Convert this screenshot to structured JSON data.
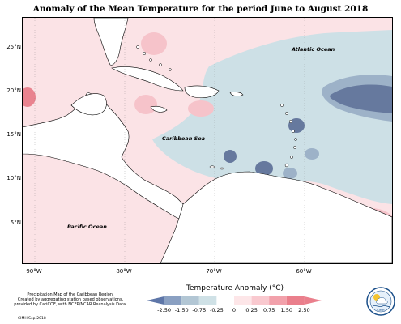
{
  "title": "Anomaly of the Mean Temperature for the period June to August 2018",
  "lat_labels": [
    "25°N",
    "20°N",
    "15°N",
    "10°N",
    "5°N"
  ],
  "lon_labels": [
    "90°W",
    "80°W",
    "70°W",
    "60°W"
  ],
  "oceans": {
    "atlantic": "Atlantic Ocean",
    "caribbean": "Caribbean Sea",
    "pacific": "Pacific Ocean"
  },
  "legend": {
    "title": "Temperature Anomaly (°C)",
    "ticks": [
      "-2.50",
      "-1.50",
      "-0.75",
      "-0.25",
      "0",
      "0.25",
      "0.75",
      "1.50",
      "2.50"
    ],
    "colors": [
      "#5e76a8",
      "#8aa0c2",
      "#b2c6d4",
      "#cfe1e6",
      "#ffffff",
      "#fde6e8",
      "#f9c9cf",
      "#f2a1ab",
      "#ea7f8c"
    ]
  },
  "footer": {
    "line1": "Precipitation Map of the Caribbean Region.",
    "line2": "Created by aggregating station based observations,",
    "line3": "provided by CariCOF, with NCEP/NCAR Reanalysis Data.",
    "credit": "CIMH Sep-2018"
  },
  "logo_text": "CIMH",
  "colors": {
    "warm_light": "#fbe3e6",
    "warm_mid": "#f6c3ca",
    "warm_strong": "#e9838f",
    "cool_light": "#cde0e6",
    "cool_mid": "#9db2c8",
    "cool_strong": "#66799e",
    "land": "#ffffff"
  }
}
